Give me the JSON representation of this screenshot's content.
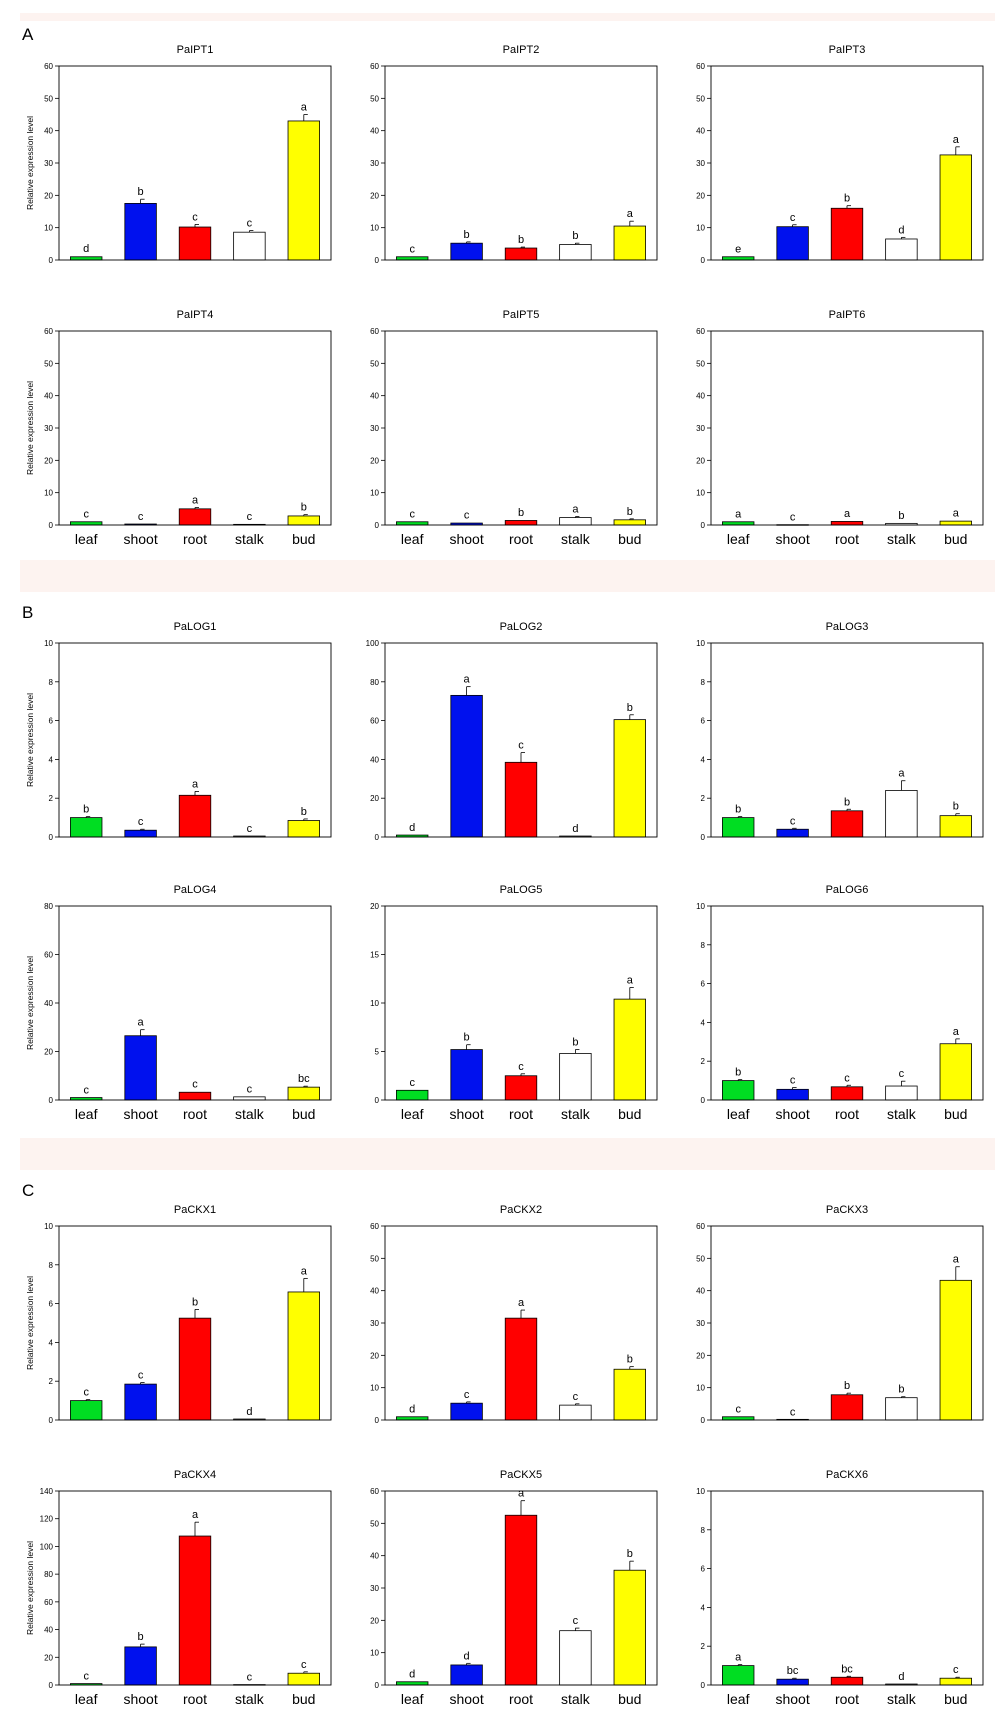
{
  "colors": {
    "leaf": "#00dd22",
    "shoot": "#0011ee",
    "root": "#ff0000",
    "stalk": "#ffffff",
    "bud": "#ffff00",
    "band": "#fdf3f0"
  },
  "y_axis_label": "Relative expression level",
  "categories": [
    "leaf",
    "shoot",
    "root",
    "stalk",
    "bud"
  ],
  "panels": [
    {
      "letter": "A"
    },
    {
      "letter": "B"
    },
    {
      "letter": "C"
    }
  ],
  "chart_data": [
    {
      "type": "bar",
      "title": "PaIPT1",
      "ylim": [
        0,
        60
      ],
      "yticks": [
        0,
        10,
        20,
        30,
        40,
        50,
        60
      ],
      "values": [
        1,
        17.5,
        10.2,
        8.6,
        43
      ],
      "errors": [
        0.2,
        1.3,
        0.8,
        0.5,
        2
      ],
      "letters": [
        "d",
        "b",
        "c",
        "c",
        "a"
      ]
    },
    {
      "type": "bar",
      "title": "PaIPT2",
      "ylim": [
        0,
        60
      ],
      "yticks": [
        0,
        10,
        20,
        30,
        40,
        50,
        60
      ],
      "values": [
        1,
        5.2,
        3.7,
        4.8,
        10.5
      ],
      "errors": [
        0.1,
        0.4,
        0.3,
        0.4,
        1.5
      ],
      "letters": [
        "c",
        "b",
        "b",
        "b",
        "a"
      ]
    },
    {
      "type": "bar",
      "title": "PaIPT3",
      "ylim": [
        0,
        60
      ],
      "yticks": [
        0,
        10,
        20,
        30,
        40,
        50,
        60
      ],
      "values": [
        1,
        10.3,
        16,
        6.5,
        32.5
      ],
      "errors": [
        0.1,
        0.6,
        0.8,
        0.5,
        2.5
      ],
      "letters": [
        "e",
        "c",
        "b",
        "d",
        "a"
      ]
    },
    {
      "type": "bar",
      "title": "PaIPT4",
      "ylim": [
        0,
        60
      ],
      "yticks": [
        0,
        10,
        20,
        30,
        40,
        50,
        60
      ],
      "values": [
        1,
        0.3,
        5,
        0.2,
        2.8
      ],
      "errors": [
        0.1,
        0.05,
        0.4,
        0.05,
        0.4
      ],
      "letters": [
        "c",
        "c",
        "a",
        "c",
        "b"
      ]
    },
    {
      "type": "bar",
      "title": "PaIPT5",
      "ylim": [
        0,
        60
      ],
      "yticks": [
        0,
        10,
        20,
        30,
        40,
        50,
        60
      ],
      "values": [
        1,
        0.6,
        1.4,
        2.3,
        1.6
      ],
      "errors": [
        0.1,
        0.1,
        0.2,
        0.3,
        0.3
      ],
      "letters": [
        "c",
        "c",
        "b",
        "a",
        "b"
      ]
    },
    {
      "type": "bar",
      "title": "PaIPT6",
      "ylim": [
        0,
        60
      ],
      "yticks": [
        0,
        10,
        20,
        30,
        40,
        50,
        60
      ],
      "values": [
        1,
        0.1,
        1.1,
        0.5,
        1.2
      ],
      "errors": [
        0.1,
        0.02,
        0.2,
        0.1,
        0.2
      ],
      "letters": [
        "a",
        "c",
        "a",
        "b",
        "a"
      ]
    },
    {
      "type": "bar",
      "title": "PaLOG1",
      "ylim": [
        0,
        10
      ],
      "yticks": [
        0,
        2,
        4,
        6,
        8,
        10
      ],
      "values": [
        1,
        0.35,
        2.15,
        0.05,
        0.85
      ],
      "errors": [
        0.05,
        0.05,
        0.2,
        0.01,
        0.08
      ],
      "letters": [
        "b",
        "c",
        "a",
        "c",
        "b"
      ]
    },
    {
      "type": "bar",
      "title": "PaLOG2",
      "ylim": [
        0,
        100
      ],
      "yticks": [
        0,
        20,
        40,
        60,
        80,
        100
      ],
      "values": [
        1,
        73,
        38.5,
        0.5,
        60.5
      ],
      "errors": [
        0.1,
        4.5,
        5,
        0.1,
        2.5
      ],
      "letters": [
        "d",
        "a",
        "c",
        "d",
        "b"
      ]
    },
    {
      "type": "bar",
      "title": "PaLOG3",
      "ylim": [
        0,
        10
      ],
      "yticks": [
        0,
        2,
        4,
        6,
        8,
        10
      ],
      "values": [
        1,
        0.4,
        1.35,
        2.4,
        1.1
      ],
      "errors": [
        0.05,
        0.05,
        0.08,
        0.5,
        0.1
      ],
      "letters": [
        "b",
        "c",
        "b",
        "a",
        "b"
      ]
    },
    {
      "type": "bar",
      "title": "PaLOG4",
      "ylim": [
        0,
        80
      ],
      "yticks": [
        0,
        20,
        40,
        60,
        80
      ],
      "values": [
        1,
        26.5,
        3.2,
        1.3,
        5.3
      ],
      "errors": [
        0.1,
        2.5,
        0.3,
        0.2,
        0.4
      ],
      "letters": [
        "c",
        "a",
        "c",
        "c",
        "bc"
      ]
    },
    {
      "type": "bar",
      "title": "PaLOG5",
      "ylim": [
        0,
        20
      ],
      "yticks": [
        0,
        5,
        10,
        15,
        20
      ],
      "values": [
        1,
        5.2,
        2.5,
        4.8,
        10.4
      ],
      "errors": [
        0.05,
        0.5,
        0.2,
        0.4,
        1.2
      ],
      "letters": [
        "c",
        "b",
        "c",
        "b",
        "a"
      ]
    },
    {
      "type": "bar",
      "title": "PaLOG6",
      "ylim": [
        0,
        10
      ],
      "yticks": [
        0,
        2,
        4,
        6,
        8,
        10
      ],
      "values": [
        1,
        0.55,
        0.68,
        0.72,
        2.9
      ],
      "errors": [
        0.05,
        0.1,
        0.08,
        0.25,
        0.25
      ],
      "letters": [
        "b",
        "c",
        "c",
        "c",
        "a"
      ]
    },
    {
      "type": "bar",
      "title": "PaCKX1",
      "ylim": [
        0,
        10
      ],
      "yticks": [
        0,
        2,
        4,
        6,
        8,
        10
      ],
      "values": [
        1,
        1.85,
        5.25,
        0.05,
        6.6
      ],
      "errors": [
        0.05,
        0.08,
        0.45,
        0.01,
        0.7
      ],
      "letters": [
        "c",
        "c",
        "b",
        "d",
        "a"
      ]
    },
    {
      "type": "bar",
      "title": "PaCKX2",
      "ylim": [
        0,
        60
      ],
      "yticks": [
        0,
        10,
        20,
        30,
        40,
        50,
        60
      ],
      "values": [
        1,
        5.2,
        31.5,
        4.6,
        15.7
      ],
      "errors": [
        0.1,
        0.4,
        2.5,
        0.4,
        0.8
      ],
      "letters": [
        "d",
        "c",
        "a",
        "c",
        "b"
      ]
    },
    {
      "type": "bar",
      "title": "PaCKX3",
      "ylim": [
        0,
        60
      ],
      "yticks": [
        0,
        10,
        20,
        30,
        40,
        50,
        60
      ],
      "values": [
        1,
        0.2,
        7.8,
        6.9,
        43.2
      ],
      "errors": [
        0.1,
        0.02,
        0.5,
        0.3,
        4.2
      ],
      "letters": [
        "c",
        "c",
        "b",
        "b",
        "a"
      ]
    },
    {
      "type": "bar",
      "title": "PaCKX4",
      "ylim": [
        0,
        140
      ],
      "yticks": [
        0,
        20,
        40,
        60,
        80,
        100,
        120,
        140
      ],
      "values": [
        1,
        27.5,
        107.5,
        0.3,
        8.5
      ],
      "errors": [
        0.1,
        2,
        10,
        0.05,
        1
      ],
      "letters": [
        "c",
        "b",
        "a",
        "c",
        "c"
      ]
    },
    {
      "type": "bar",
      "title": "PaCKX5",
      "ylim": [
        0,
        60
      ],
      "yticks": [
        0,
        10,
        20,
        30,
        40,
        50,
        60
      ],
      "values": [
        1,
        6.2,
        52.5,
        16.8,
        35.5
      ],
      "errors": [
        0.1,
        0.5,
        4.5,
        0.8,
        2.8
      ],
      "letters": [
        "d",
        "d",
        "a",
        "c",
        "b"
      ]
    },
    {
      "type": "bar",
      "title": "PaCKX6",
      "ylim": [
        0,
        10
      ],
      "yticks": [
        0,
        2,
        4,
        6,
        8,
        10
      ],
      "values": [
        1,
        0.3,
        0.4,
        0.05,
        0.35
      ],
      "errors": [
        0.05,
        0.05,
        0.05,
        0.01,
        0.05
      ],
      "letters": [
        "a",
        "bc",
        "bc",
        "d",
        "c"
      ]
    }
  ]
}
